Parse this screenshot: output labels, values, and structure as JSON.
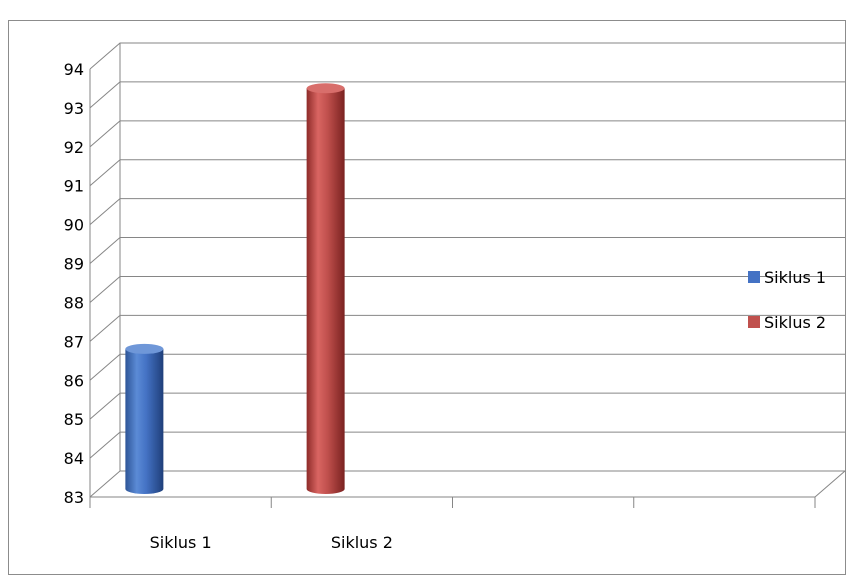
{
  "chart_data": {
    "type": "bar",
    "style": "3d-cylinder",
    "title": "",
    "xlabel": "",
    "ylabel": "",
    "categories": [
      "Siklus 1",
      "Siklus 2",
      "",
      ""
    ],
    "series": [
      {
        "name": "Siklus 1",
        "color": "#4472C4",
        "values": [
          86.6,
          null,
          null,
          null
        ]
      },
      {
        "name": "Siklus 2",
        "color": "#C0504D",
        "values": [
          null,
          93.3,
          null,
          null
        ]
      }
    ],
    "ylim": [
      83,
      94
    ],
    "yticks": [
      83,
      84,
      85,
      86,
      87,
      88,
      89,
      90,
      91,
      92,
      93,
      94
    ],
    "grid": true,
    "legend_position": "right"
  }
}
